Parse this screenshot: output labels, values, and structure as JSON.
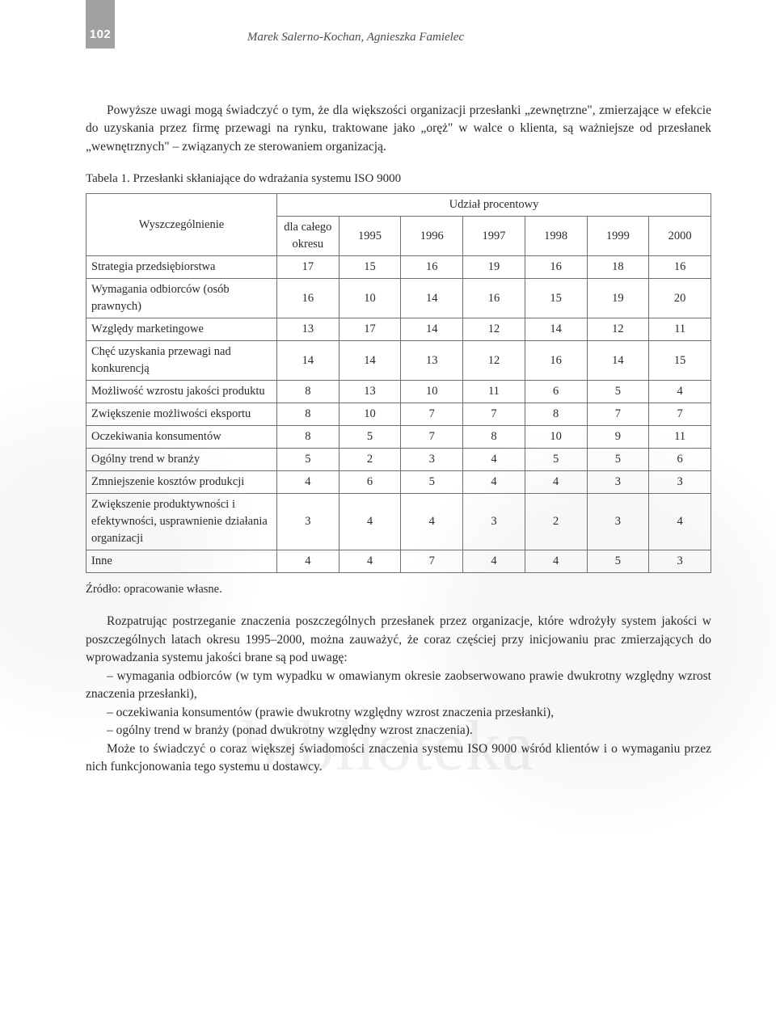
{
  "page_number": "102",
  "running_head": "Marek Salerno-Kochan, Agnieszka Famielec",
  "intro_paragraph": "Powyższe uwagi mogą świadczyć o tym, że dla większości organizacji przesłanki „zewnętrzne\", zmierzające w efekcie do uzyskania przez firmę przewagi na rynku, traktowane jako „oręż\" w walce o klienta, są ważniejsze od przesłanek „wewnętrznych\" – związanych ze sterowaniem organizacją.",
  "table_caption": "Tabela 1. Przesłanki skłaniające do wdrażania systemu ISO 9000",
  "table": {
    "row_header_label": "Wyszczególnienie",
    "super_header": "Udział procentowy",
    "columns": [
      "dla całego okresu",
      "1995",
      "1996",
      "1997",
      "1998",
      "1999",
      "2000"
    ],
    "rows": [
      {
        "label": "Strategia przedsiębiorstwa",
        "values": [
          "17",
          "15",
          "16",
          "19",
          "16",
          "18",
          "16"
        ]
      },
      {
        "label": "Wymagania odbiorców (osób prawnych)",
        "values": [
          "16",
          "10",
          "14",
          "16",
          "15",
          "19",
          "20"
        ]
      },
      {
        "label": "Względy marketingowe",
        "values": [
          "13",
          "17",
          "14",
          "12",
          "14",
          "12",
          "11"
        ]
      },
      {
        "label": "Chęć uzyskania przewagi nad konkurencją",
        "values": [
          "14",
          "14",
          "13",
          "12",
          "16",
          "14",
          "15"
        ]
      },
      {
        "label": "Możliwość wzrostu jakości produktu",
        "values": [
          "8",
          "13",
          "10",
          "11",
          "6",
          "5",
          "4"
        ]
      },
      {
        "label": "Zwiększenie możliwości eksportu",
        "values": [
          "8",
          "10",
          "7",
          "7",
          "8",
          "7",
          "7"
        ]
      },
      {
        "label": "Oczekiwania konsumentów",
        "values": [
          "8",
          "5",
          "7",
          "8",
          "10",
          "9",
          "11"
        ]
      },
      {
        "label": "Ogólny trend w branży",
        "values": [
          "5",
          "2",
          "3",
          "4",
          "5",
          "5",
          "6"
        ]
      },
      {
        "label": "Zmniejszenie kosztów produkcji",
        "values": [
          "4",
          "6",
          "5",
          "4",
          "4",
          "3",
          "3"
        ]
      },
      {
        "label": "Zwiększenie produktywności i efektywności, usprawnienie działania organizacji",
        "values": [
          "3",
          "4",
          "4",
          "3",
          "2",
          "3",
          "4"
        ]
      },
      {
        "label": "Inne",
        "values": [
          "4",
          "4",
          "7",
          "4",
          "4",
          "5",
          "3"
        ]
      }
    ],
    "border_color": "#6f6f6f"
  },
  "source_line": "Źródło: opracowanie własne.",
  "discussion_para": "Rozpatrując postrzeganie znaczenia poszczególnych przesłanek przez organizacje, które wdrożyły system jakości w poszczególnych latach okresu 1995–2000, można zauważyć, że coraz częściej przy inicjowaniu prac zmierzających do wprowadzania systemu jakości brane są pod uwagę:",
  "bullets": [
    "– wymagania odbiorców (w tym wypadku w omawianym okresie zaobserwowano prawie dwukrotny względny wzrost znaczenia przesłanki),",
    "– oczekiwania konsumentów (prawie dwukrotny względny wzrost znaczenia przesłanki),",
    "– ogólny trend w branży (ponad dwukrotny względny wzrost znaczenia)."
  ],
  "closing_para": "Może to świadczyć o coraz większej świadomości znaczenia systemu ISO 9000 wśród klientów i o wymaganiu przez nich funkcjonowania tego systemu u dostawcy.",
  "watermark_text": "biblioteka"
}
